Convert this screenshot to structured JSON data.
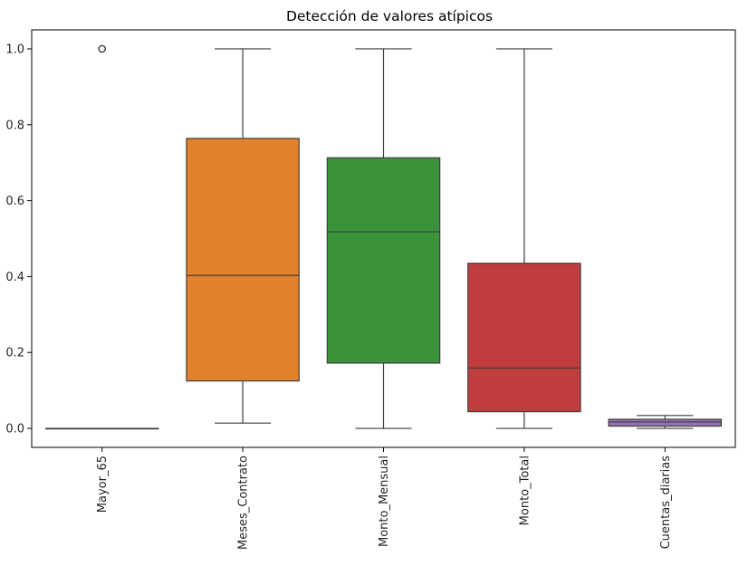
{
  "chart_data": {
    "type": "box",
    "title": "Detección de valores atípicos",
    "xlabel": "",
    "ylabel": "",
    "ylim": [
      -0.05,
      1.05
    ],
    "yticks": [
      0.0,
      0.2,
      0.4,
      0.6,
      0.8,
      1.0
    ],
    "ytick_labels": [
      "0.0",
      "0.2",
      "0.4",
      "0.6",
      "0.8",
      "1.0"
    ],
    "grid": false,
    "legend": "none",
    "categories": [
      "Mayor_65",
      "Meses_Contrato",
      "Monto_Mensual",
      "Monto_Total",
      "Cuentas_diarias"
    ],
    "series": [
      {
        "category": "Mayor_65",
        "whisker_low": 0.0,
        "q1": 0.0,
        "median": 0.0,
        "q3": 0.0,
        "whisker_high": 0.0,
        "outliers": [
          1.0
        ],
        "color": "#3a75af"
      },
      {
        "category": "Meses_Contrato",
        "whisker_low": 0.014,
        "q1": 0.125,
        "median": 0.403,
        "q3": 0.764,
        "whisker_high": 1.0,
        "outliers": [],
        "color": "#e1812c"
      },
      {
        "category": "Monto_Mensual",
        "whisker_low": 0.0,
        "q1": 0.172,
        "median": 0.518,
        "q3": 0.713,
        "whisker_high": 1.0,
        "outliers": [],
        "color": "#3a923a"
      },
      {
        "category": "Monto_Total",
        "whisker_low": 0.0,
        "q1": 0.044,
        "median": 0.159,
        "q3": 0.435,
        "whisker_high": 1.0,
        "outliers": [],
        "color": "#c03d3e"
      },
      {
        "category": "Cuentas_diarias",
        "whisker_low": 0.0,
        "q1": 0.006,
        "median": 0.017,
        "q3": 0.024,
        "whisker_high": 0.034,
        "outliers": [],
        "color": "#9372b2"
      }
    ]
  }
}
